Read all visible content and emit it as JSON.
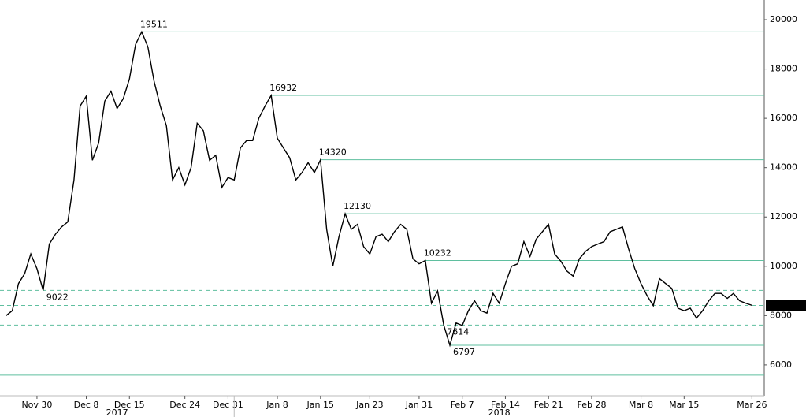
{
  "chart_data": {
    "type": "line",
    "x": [
      "2017-11-25",
      "2017-11-26",
      "2017-11-27",
      "2017-11-28",
      "2017-11-29",
      "2017-11-30",
      "2017-12-01",
      "2017-12-02",
      "2017-12-03",
      "2017-12-04",
      "2017-12-05",
      "2017-12-06",
      "2017-12-07",
      "2017-12-08",
      "2017-12-09",
      "2017-12-10",
      "2017-12-11",
      "2017-12-12",
      "2017-12-13",
      "2017-12-14",
      "2017-12-15",
      "2017-12-16",
      "2017-12-17",
      "2017-12-18",
      "2017-12-19",
      "2017-12-20",
      "2017-12-21",
      "2017-12-22",
      "2017-12-23",
      "2017-12-24",
      "2017-12-25",
      "2017-12-26",
      "2017-12-27",
      "2017-12-28",
      "2017-12-29",
      "2017-12-30",
      "2017-12-31",
      "2018-01-01",
      "2018-01-02",
      "2018-01-03",
      "2018-01-04",
      "2018-01-05",
      "2018-01-06",
      "2018-01-07",
      "2018-01-08",
      "2018-01-09",
      "2018-01-10",
      "2018-01-11",
      "2018-01-12",
      "2018-01-13",
      "2018-01-14",
      "2018-01-15",
      "2018-01-16",
      "2018-01-17",
      "2018-01-18",
      "2018-01-19",
      "2018-01-20",
      "2018-01-21",
      "2018-01-22",
      "2018-01-23",
      "2018-01-24",
      "2018-01-25",
      "2018-01-26",
      "2018-01-27",
      "2018-01-28",
      "2018-01-29",
      "2018-01-30",
      "2018-01-31",
      "2018-02-01",
      "2018-02-02",
      "2018-02-03",
      "2018-02-04",
      "2018-02-05",
      "2018-02-06",
      "2018-02-07",
      "2018-02-08",
      "2018-02-09",
      "2018-02-10",
      "2018-02-11",
      "2018-02-12",
      "2018-02-13",
      "2018-02-14",
      "2018-02-15",
      "2018-02-16",
      "2018-02-17",
      "2018-02-18",
      "2018-02-19",
      "2018-02-20",
      "2018-02-21",
      "2018-02-22",
      "2018-02-23",
      "2018-02-24",
      "2018-02-25",
      "2018-02-26",
      "2018-02-27",
      "2018-02-28",
      "2018-03-01",
      "2018-03-02",
      "2018-03-03",
      "2018-03-04",
      "2018-03-05",
      "2018-03-06",
      "2018-03-07",
      "2018-03-08",
      "2018-03-09",
      "2018-03-10",
      "2018-03-11",
      "2018-03-12",
      "2018-03-13",
      "2018-03-14",
      "2018-03-15",
      "2018-03-16",
      "2018-03-17",
      "2018-03-18",
      "2018-03-19",
      "2018-03-20",
      "2018-03-21",
      "2018-03-22",
      "2018-03-23",
      "2018-03-24",
      "2018-03-25",
      "2018-03-26"
    ],
    "series": [
      {
        "color": "#000000",
        "values": [
          8000,
          8200,
          9300,
          9700,
          10500,
          9900,
          9022,
          10900,
          11300,
          11600,
          11800,
          13500,
          16500,
          16900,
          14300,
          15000,
          16700,
          17100,
          16400,
          16800,
          17600,
          19000,
          19511,
          18900,
          17500,
          16500,
          15700,
          13500,
          14000,
          13300,
          14000,
          15800,
          15500,
          14300,
          14500,
          13200,
          13600,
          13500,
          14800,
          15100,
          15100,
          16000,
          16500,
          16932,
          15200,
          14800,
          14400,
          13500,
          13800,
          14200,
          13800,
          14320,
          11500,
          10000,
          11200,
          12130,
          11500,
          11700,
          10800,
          10500,
          11200,
          11300,
          11000,
          11400,
          11700,
          11500,
          10300,
          10100,
          10232,
          8500,
          9000,
          7614,
          6797,
          7700,
          7600,
          8200,
          8600,
          8200,
          8100,
          8900,
          8500,
          9300,
          10000,
          10100,
          11000,
          10400,
          11100,
          11400,
          11700,
          10500,
          10200,
          9800,
          9600,
          10300,
          10600,
          10800,
          10900,
          11000,
          11400,
          11500,
          11600,
          10700,
          9900,
          9300,
          8800,
          8400,
          9500,
          9300,
          9100,
          8300,
          8200,
          8300,
          7900,
          8200,
          8600,
          8900,
          8900,
          8700,
          8900,
          8600,
          8500,
          8412.5508
        ]
      }
    ],
    "last_price": 8412.5508,
    "levels": [
      {
        "value": 19511,
        "style": "solid",
        "labeled": true
      },
      {
        "value": 16932,
        "style": "solid",
        "labeled": true
      },
      {
        "value": 14320,
        "style": "solid",
        "labeled": true
      },
      {
        "value": 12130,
        "style": "solid",
        "labeled": true
      },
      {
        "value": 10232,
        "style": "solid",
        "labeled": true
      },
      {
        "value": 9022,
        "style": "dashed",
        "labeled": true
      },
      {
        "value": 7614,
        "style": "dashed",
        "labeled": true
      },
      {
        "value": 6797,
        "style": "solid",
        "labeled": true
      },
      {
        "value": 5585,
        "style": "solid",
        "labeled": false
      }
    ],
    "level_color": "#5fbf9f",
    "xlim": [
      "2017-11-24",
      "2018-03-28"
    ],
    "xticks": [
      {
        "value": "2017-11-30",
        "label": "Nov 30"
      },
      {
        "value": "2017-12-08",
        "label": "Dec 8"
      },
      {
        "value": "2017-12-15",
        "label": "Dec 15"
      },
      {
        "value": "2017-12-24",
        "label": "Dec 24"
      },
      {
        "value": "2017-12-31",
        "label": "Dec 31"
      },
      {
        "value": "2018-01-08",
        "label": "Jan 8"
      },
      {
        "value": "2018-01-15",
        "label": "Jan 15"
      },
      {
        "value": "2018-01-23",
        "label": "Jan 23"
      },
      {
        "value": "2018-01-31",
        "label": "Jan 31"
      },
      {
        "value": "2018-02-07",
        "label": "Feb 7"
      },
      {
        "value": "2018-02-14",
        "label": "Feb 14"
      },
      {
        "value": "2018-02-21",
        "label": "Feb 21"
      },
      {
        "value": "2018-02-28",
        "label": "Feb 28"
      },
      {
        "value": "2018-03-08",
        "label": "Mar 8"
      },
      {
        "value": "2018-03-15",
        "label": "Mar 15"
      },
      {
        "value": "2018-03-26",
        "label": "Mar 26"
      }
    ],
    "years": [
      "2017",
      "2018"
    ],
    "ylim": [
      4750,
      20800
    ],
    "yticks": [
      6000,
      8000,
      10000,
      12000,
      14000,
      16000,
      18000,
      20000
    ]
  }
}
